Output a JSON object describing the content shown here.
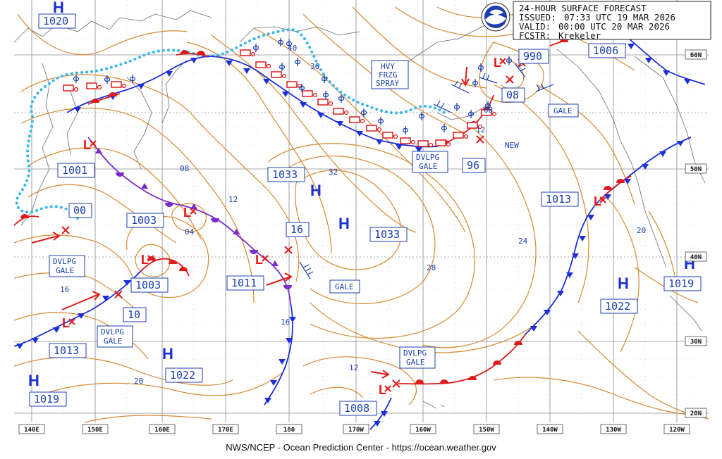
{
  "header": {
    "lines": [
      {
        "label": "",
        "value": "24-HOUR SURFACE FORECAST"
      },
      {
        "label": "ISSUED:",
        "value": "07:33 UTC 19 MAR 2026"
      },
      {
        "label": "VALID:",
        "value": " 00:00 UTC 20 MAR 2026"
      },
      {
        "label": "FCSTR:",
        "value": " Krekeler"
      }
    ],
    "logo_icon": "noaa-logo-icon"
  },
  "footer": {
    "credit": "NWS/NCEP - Ocean Prediction Center - https://ocean.weather.gov"
  },
  "axis": {
    "longitudes": [
      "140E",
      "150E",
      "160E",
      "170E",
      "180",
      "170W",
      "160W",
      "150W",
      "140W",
      "130W",
      "120W"
    ],
    "latitudes": [
      "60N",
      "50N",
      "40N",
      "30N",
      "20N"
    ]
  },
  "highs": [
    {
      "id": "h1",
      "letter": "H",
      "value": "1020"
    },
    {
      "id": "h2",
      "letter": "H",
      "value": "1033"
    },
    {
      "id": "h3",
      "letter": "H",
      "value": "1033"
    },
    {
      "id": "h4",
      "letter": "H",
      "value": "1022"
    },
    {
      "id": "h5",
      "letter": "H",
      "value": "1019"
    },
    {
      "id": "h6",
      "letter": "H",
      "value": "1022"
    },
    {
      "id": "h7",
      "letter": "H",
      "value": "1019"
    }
  ],
  "lows": [
    {
      "id": "l1",
      "value": "1001"
    },
    {
      "id": "l2",
      "value": "1003"
    },
    {
      "id": "l3",
      "value": "1003"
    },
    {
      "id": "l4",
      "value": "1011"
    },
    {
      "id": "l5",
      "value": "1013"
    },
    {
      "id": "l6",
      "value": "1013"
    },
    {
      "id": "l7",
      "value": "1008"
    },
    {
      "id": "l8",
      "value": "990"
    },
    {
      "id": "l9",
      "value": "1006"
    }
  ],
  "isobar_labels": [
    "40",
    "36",
    "32",
    "28",
    "24",
    "20",
    "20",
    "16",
    "16",
    "16",
    "12",
    "12",
    "12",
    "10",
    "08",
    "08",
    "08",
    "04",
    "00",
    "96"
  ],
  "warnings": [
    {
      "id": "w1",
      "lines": [
        "HVY",
        "FRZG",
        "SPRAY"
      ]
    },
    {
      "id": "w2",
      "lines": [
        "DVLPG",
        "GALE"
      ]
    },
    {
      "id": "w3",
      "lines": [
        "GALE"
      ]
    },
    {
      "id": "w4",
      "lines": [
        "DVLPG",
        "GALE"
      ]
    },
    {
      "id": "w5",
      "lines": [
        "DVLPG",
        "GALE"
      ]
    },
    {
      "id": "w6",
      "lines": [
        "GALE"
      ]
    },
    {
      "id": "w7",
      "lines": [
        "DVLPG",
        "GALE"
      ]
    }
  ],
  "notes": {
    "new_label": "NEW"
  },
  "colors": {
    "isobar": "#d9882f",
    "cold_front": "#1d2fd8",
    "warm_front": "#e01a1a",
    "occluded_front": "#7a2dc8",
    "ice_edge": "#39b6ec",
    "label_blue": "#1a3fb0"
  }
}
